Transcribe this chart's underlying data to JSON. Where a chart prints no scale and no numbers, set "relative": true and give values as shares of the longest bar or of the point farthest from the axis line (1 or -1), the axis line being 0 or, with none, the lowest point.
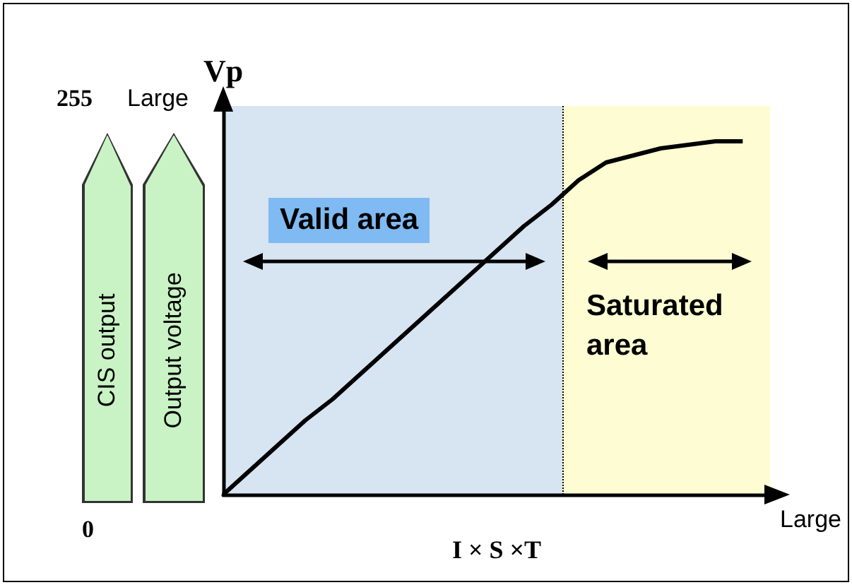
{
  "chart_data": {
    "type": "line",
    "relative": true,
    "ylabel": "Vp",
    "xlabel": "I × S ×T",
    "categories": [
      null,
      null,
      null,
      null,
      null,
      null,
      null,
      null,
      null,
      null,
      null,
      null,
      null,
      null,
      null,
      null,
      null,
      null,
      null,
      null,
      null
    ],
    "series": [
      {
        "color": "#000000",
        "values": [
          0,
          0.07,
          0.14,
          0.21,
          0.27,
          0.34,
          0.41,
          0.48,
          0.55,
          0.62,
          0.69,
          0.76,
          0.82,
          0.89,
          0.94,
          0.96,
          0.98,
          0.99,
          1,
          1,
          null
        ]
      }
    ],
    "marker": "none",
    "line_style": "solid",
    "grid": false,
    "annotations": [
      "255",
      "Large",
      "0",
      "Large",
      "CIS output",
      "Output voltage",
      "Valid area",
      "Saturated\narea"
    ]
  }
}
